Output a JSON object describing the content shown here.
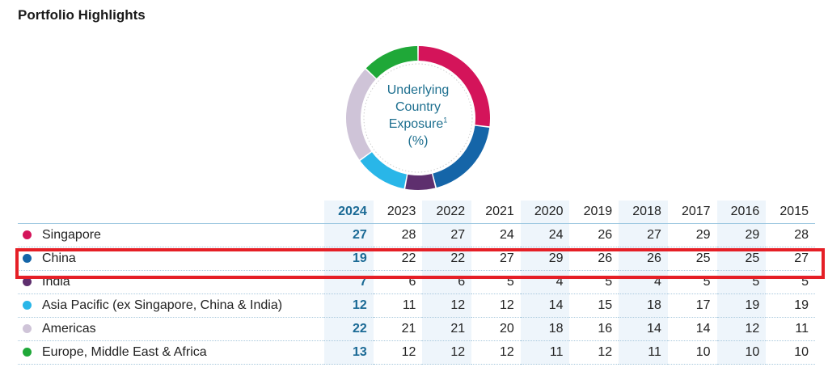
{
  "page": {
    "title": "Portfolio Highlights"
  },
  "chart_data": [
    {
      "type": "pie",
      "title": "Underlying Country Exposure",
      "title_sup": "1",
      "unit": "(%)",
      "year": "2024",
      "slices": [
        {
          "name": "Singapore",
          "value": 27,
          "color": "#d4145a"
        },
        {
          "name": "China",
          "value": 19,
          "color": "#1565a8"
        },
        {
          "name": "India",
          "value": 7,
          "color": "#5e2f6e"
        },
        {
          "name": "Asia Pacific (ex Singapore, China & India)",
          "value": 12,
          "color": "#29b6e8"
        },
        {
          "name": "Americas",
          "value": 22,
          "color": "#cfc4d8"
        },
        {
          "name": "Europe, Middle East & Africa",
          "value": 13,
          "color": "#1fa838"
        }
      ]
    },
    {
      "type": "table",
      "years": [
        "2024",
        "2023",
        "2022",
        "2021",
        "2020",
        "2019",
        "2018",
        "2017",
        "2016",
        "2015"
      ],
      "rows": [
        {
          "name": "Singapore",
          "color": "#d4145a",
          "values": [
            "27",
            "28",
            "27",
            "24",
            "24",
            "26",
            "27",
            "29",
            "29",
            "28"
          ]
        },
        {
          "name": "China",
          "color": "#1565a8",
          "values": [
            "19",
            "22",
            "22",
            "27",
            "29",
            "26",
            "26",
            "25",
            "25",
            "27"
          ]
        },
        {
          "name": "India",
          "color": "#5e2f6e",
          "values": [
            "7",
            "6",
            "6",
            "5",
            "4",
            "5",
            "4",
            "5",
            "5",
            "5"
          ]
        },
        {
          "name": "Asia Pacific (ex Singapore, China & India)",
          "color": "#29b6e8",
          "values": [
            "12",
            "11",
            "12",
            "12",
            "14",
            "15",
            "18",
            "17",
            "19",
            "19"
          ]
        },
        {
          "name": "Americas",
          "color": "#cfc4d8",
          "values": [
            "22",
            "21",
            "21",
            "20",
            "18",
            "16",
            "14",
            "14",
            "12",
            "11"
          ]
        },
        {
          "name": "Europe, Middle East & Africa",
          "color": "#1fa838",
          "values": [
            "13",
            "12",
            "12",
            "12",
            "11",
            "12",
            "11",
            "10",
            "10",
            "10"
          ]
        }
      ],
      "highlighted_row": "China"
    }
  ]
}
